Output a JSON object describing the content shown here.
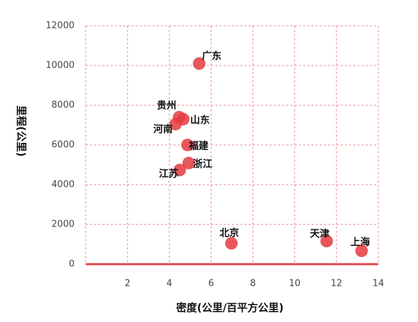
{
  "chart_data": {
    "type": "scatter",
    "x_label": "密度(公里/百平方公里)",
    "y_label": "里程(公里)",
    "color": "#e53a3f",
    "xlim": [
      0,
      14
    ],
    "xticks": [
      2,
      4,
      6,
      8,
      10,
      12,
      14
    ],
    "ylim": [
      0,
      12000
    ],
    "yticks": [
      0,
      2000,
      4000,
      6000,
      8000,
      10000,
      12000
    ],
    "grid": true,
    "labels": [
      "广东",
      "贵州",
      "山东",
      "河南",
      "福建",
      "浙江",
      "江苏",
      "北京",
      "天津",
      "上海"
    ],
    "x": [
      5.43,
      4.47,
      4.67,
      4.3,
      4.87,
      4.93,
      4.5,
      6.97,
      11.53,
      13.2
    ],
    "values": [
      10100,
      7400,
      7300,
      7050,
      6000,
      5090,
      4740,
      1050,
      1160,
      670
    ]
  }
}
